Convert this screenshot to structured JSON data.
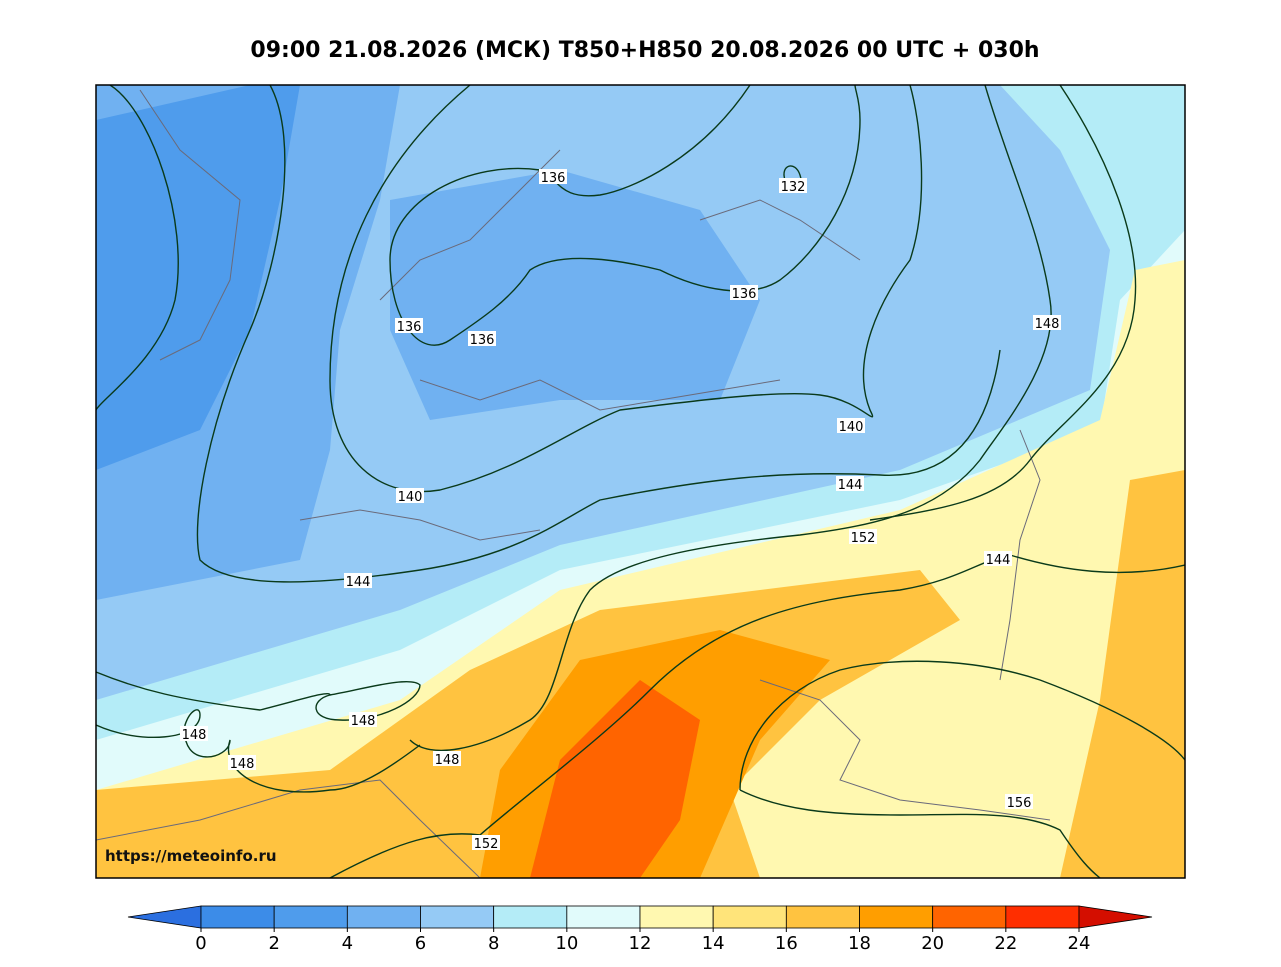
{
  "title": "09:00 21.08.2026 (МСК) T850+H850 20.08.2026 00 UTC + 030h",
  "url": "https://meteoinfo.ru",
  "contour_labels": [
    136,
    132,
    136,
    136,
    136,
    140,
    144,
    140,
    144,
    148,
    152,
    144,
    148,
    148,
    148,
    148,
    152,
    156
  ],
  "colorbar": {
    "ticks": [
      0,
      2,
      4,
      6,
      8,
      10,
      12,
      14,
      16,
      18,
      20,
      22,
      24
    ],
    "colors": [
      "#2b6fe0",
      "#3c8ce8",
      "#4f9cec",
      "#70b1f1",
      "#95caf5",
      "#b4ecf7",
      "#e1fbfb",
      "#fff8b0",
      "#ffe47a",
      "#ffc340",
      "#ff9e00",
      "#ff6400",
      "#ff2e00",
      "#d40e00"
    ]
  }
}
